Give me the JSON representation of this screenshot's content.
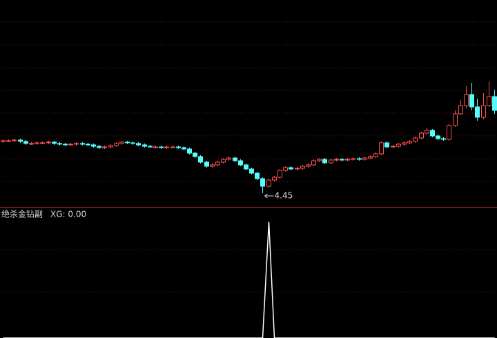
{
  "chart_data": [
    {
      "type": "candlestick",
      "up_color": "#ff5050",
      "down_color": "#54fcfc",
      "ylim": [
        4.25,
        7.25
      ],
      "open": [
        5.2,
        5.21,
        5.21,
        5.22,
        5.2,
        5.17,
        5.17,
        5.18,
        5.18,
        5.19,
        5.17,
        5.16,
        5.15,
        5.16,
        5.17,
        5.16,
        5.15,
        5.13,
        5.11,
        5.12,
        5.14,
        5.17,
        5.19,
        5.18,
        5.17,
        5.15,
        5.13,
        5.12,
        5.12,
        5.11,
        5.12,
        5.12,
        5.11,
        5.09,
        5.03,
        4.98,
        4.9,
        4.84,
        4.86,
        4.9,
        4.94,
        4.96,
        4.92,
        4.86,
        4.8,
        4.74,
        4.66,
        4.55,
        4.64,
        4.68,
        4.78,
        4.82,
        4.8,
        4.81,
        4.84,
        4.86,
        4.92,
        4.94,
        4.89,
        4.93,
        4.94,
        4.93,
        4.94,
        4.95,
        4.94,
        4.96,
        4.98,
        5.02,
        5.18,
        5.12,
        5.13,
        5.16,
        5.18,
        5.2,
        5.25,
        5.32,
        5.36,
        5.28,
        5.24,
        5.23,
        5.43,
        5.6,
        5.72,
        5.88,
        5.7,
        5.55,
        5.72,
        5.85
      ],
      "high": [
        5.23,
        5.23,
        5.24,
        5.24,
        5.22,
        5.19,
        5.2,
        5.2,
        5.21,
        5.21,
        5.19,
        5.18,
        5.18,
        5.19,
        5.19,
        5.18,
        5.17,
        5.15,
        5.14,
        5.16,
        5.19,
        5.21,
        5.21,
        5.2,
        5.19,
        5.17,
        5.15,
        5.14,
        5.14,
        5.14,
        5.14,
        5.14,
        5.13,
        5.11,
        5.05,
        5.0,
        4.92,
        4.88,
        4.92,
        4.96,
        4.98,
        4.98,
        4.94,
        4.88,
        4.82,
        4.76,
        4.68,
        4.66,
        4.7,
        4.8,
        4.84,
        4.84,
        4.83,
        4.86,
        4.88,
        4.94,
        4.96,
        4.96,
        4.95,
        4.96,
        4.96,
        4.96,
        4.97,
        4.97,
        4.98,
        5.0,
        5.04,
        5.2,
        5.2,
        5.15,
        5.18,
        5.2,
        5.22,
        5.27,
        5.34,
        5.4,
        5.38,
        5.3,
        5.26,
        5.45,
        5.65,
        5.8,
        6.0,
        6.05,
        5.82,
        5.9,
        6.07,
        5.95
      ],
      "low": [
        5.18,
        5.19,
        5.19,
        5.18,
        5.15,
        5.15,
        5.15,
        5.16,
        5.16,
        5.15,
        5.14,
        5.13,
        5.13,
        5.14,
        5.14,
        5.13,
        5.11,
        5.09,
        5.09,
        5.1,
        5.12,
        5.15,
        5.16,
        5.15,
        5.13,
        5.11,
        5.1,
        5.1,
        5.09,
        5.09,
        5.1,
        5.09,
        5.07,
        5.01,
        4.96,
        4.88,
        4.82,
        4.82,
        4.84,
        4.88,
        4.92,
        4.9,
        4.84,
        4.78,
        4.72,
        4.64,
        4.45,
        4.53,
        4.62,
        4.66,
        4.76,
        4.78,
        4.78,
        4.79,
        4.82,
        4.84,
        4.9,
        4.87,
        4.87,
        4.91,
        4.91,
        4.91,
        4.92,
        4.92,
        4.92,
        4.94,
        4.96,
        5.0,
        5.1,
        5.1,
        5.11,
        5.14,
        5.16,
        5.18,
        5.23,
        5.3,
        5.26,
        5.22,
        5.21,
        5.21,
        5.41,
        5.58,
        5.68,
        5.65,
        5.5,
        5.52,
        5.7,
        5.6
      ],
      "close": [
        5.21,
        5.21,
        5.22,
        5.2,
        5.17,
        5.17,
        5.18,
        5.18,
        5.19,
        5.17,
        5.16,
        5.15,
        5.16,
        5.17,
        5.16,
        5.15,
        5.13,
        5.11,
        5.12,
        5.14,
        5.17,
        5.19,
        5.18,
        5.17,
        5.15,
        5.13,
        5.12,
        5.12,
        5.11,
        5.12,
        5.12,
        5.11,
        5.09,
        5.03,
        4.98,
        4.9,
        4.84,
        4.86,
        4.9,
        4.94,
        4.96,
        4.92,
        4.86,
        4.8,
        4.74,
        4.66,
        4.55,
        4.64,
        4.68,
        4.78,
        4.82,
        4.8,
        4.81,
        4.84,
        4.86,
        4.92,
        4.94,
        4.89,
        4.93,
        4.94,
        4.93,
        4.94,
        4.95,
        4.94,
        4.96,
        4.98,
        5.02,
        5.18,
        5.12,
        5.13,
        5.16,
        5.18,
        5.2,
        5.25,
        5.32,
        5.36,
        5.28,
        5.24,
        5.23,
        5.43,
        5.6,
        5.72,
        5.88,
        5.7,
        5.55,
        5.72,
        5.85,
        5.65
      ]
    },
    {
      "type": "line",
      "title": "绝杀金钻副",
      "readout": "XG: 0.00",
      "color": "#ffffff",
      "ylim": [
        0,
        1.1
      ],
      "values": [
        0,
        0,
        0,
        0,
        0,
        0,
        0,
        0,
        0,
        0,
        0,
        0,
        0,
        0,
        0,
        0,
        0,
        0,
        0,
        0,
        0,
        0,
        0,
        0,
        0,
        0,
        0,
        0,
        0,
        0,
        0,
        0,
        0,
        0,
        0,
        0,
        0,
        0,
        0,
        0,
        0,
        0,
        0,
        0,
        0,
        0,
        0,
        1,
        0,
        0,
        0,
        0,
        0,
        0,
        0,
        0,
        0,
        0,
        0,
        0,
        0,
        0,
        0,
        0,
        0,
        0,
        0,
        0,
        0,
        0,
        0,
        0,
        0,
        0,
        0,
        0,
        0,
        0,
        0,
        0,
        0,
        0,
        0,
        0,
        0,
        0,
        0,
        0
      ]
    }
  ]
}
